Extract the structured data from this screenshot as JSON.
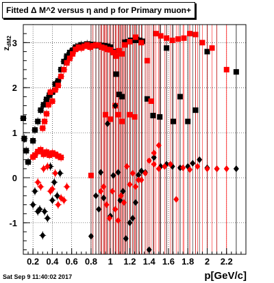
{
  "title": "Fitted Δ M^2 versus η and p for Primary muon+",
  "footer_date": "Sat Sep  9 11:40:02 2017",
  "colors": {
    "black": "#000000",
    "red": "#ff0000"
  },
  "chart_data": {
    "type": "scatter",
    "title": "Fitted Δ M^2 versus η and p for Primary muon+",
    "xlabel": "p[GeV/c]",
    "ylabel": "z",
    "ylabel_sub": "dM2",
    "xlim": [
      0.1,
      2.4
    ],
    "ylim": [
      -1.7,
      3.4
    ],
    "x_ticks": [
      "0.2",
      "0.4",
      "0.6",
      "0.8",
      "1",
      "1.2",
      "1.4",
      "1.6",
      "1.8",
      "2",
      "2.2"
    ],
    "y_ticks": [
      "-1",
      "0",
      "1",
      "2",
      "3"
    ],
    "grid": true,
    "series": [
      {
        "marker": "square",
        "color": "#000000",
        "points": [
          [
            0.1,
            1.32
          ],
          [
            0.11,
            0.87
          ],
          [
            0.13,
            0.6
          ],
          [
            0.15,
            0.35
          ],
          [
            0.2,
            0.82
          ],
          [
            0.22,
            1.06
          ],
          [
            0.25,
            1.25
          ],
          [
            0.28,
            1.5
          ],
          [
            0.31,
            1.62
          ],
          [
            0.34,
            1.74
          ],
          [
            0.37,
            1.83
          ],
          [
            0.4,
            1.9
          ],
          [
            0.43,
            2.08
          ],
          [
            0.46,
            2.15
          ],
          [
            0.49,
            2.4
          ],
          [
            0.52,
            2.58
          ],
          [
            0.55,
            2.7
          ],
          [
            0.58,
            2.78
          ],
          [
            0.61,
            2.83
          ],
          [
            0.64,
            2.9
          ],
          [
            0.67,
            2.92
          ],
          [
            0.7,
            2.95
          ],
          [
            0.73,
            2.94
          ],
          [
            0.76,
            2.97
          ],
          [
            0.79,
            2.95
          ],
          [
            0.82,
            2.96
          ],
          [
            0.85,
            2.93
          ],
          [
            0.88,
            2.95
          ],
          [
            0.91,
            2.94
          ],
          [
            0.94,
            2.93
          ],
          [
            0.97,
            2.92
          ],
          [
            1.0,
            2.9
          ],
          [
            1.03,
            2.8
          ],
          [
            1.06,
            2.3
          ],
          [
            1.09,
            1.85
          ],
          [
            1.12,
            1.8
          ],
          [
            1.15,
            3.01
          ],
          [
            1.18,
            3.02
          ],
          [
            1.21,
            3.05
          ],
          [
            1.24,
            3.05
          ],
          [
            1.27,
            3.07
          ],
          [
            1.3,
            3.05
          ],
          [
            1.33,
            3.03
          ],
          [
            1.38,
            1.75
          ],
          [
            1.44,
            1.38
          ],
          [
            1.51,
            1.35
          ],
          [
            1.58,
            2.88
          ],
          [
            1.65,
            1.25
          ],
          [
            1.72,
            1.8
          ],
          [
            1.8,
            1.25
          ],
          [
            1.88,
            1.5
          ],
          [
            2.0,
            2.8
          ],
          [
            2.3,
            2.35
          ]
        ]
      },
      {
        "marker": "square",
        "color": "#ff0000",
        "points": [
          [
            0.2,
            0.46
          ],
          [
            0.22,
            0.5
          ],
          [
            0.25,
            0.58
          ],
          [
            0.28,
            0.62
          ],
          [
            0.31,
            0.52
          ],
          [
            0.34,
            0.57
          ],
          [
            0.37,
            0.5
          ],
          [
            0.4,
            0.55
          ],
          [
            0.43,
            0.52
          ],
          [
            0.46,
            0.48
          ],
          [
            0.49,
            0.45
          ],
          [
            0.3,
            1.1
          ],
          [
            0.32,
            1.25
          ],
          [
            0.34,
            1.42
          ],
          [
            0.36,
            1.62
          ],
          [
            0.38,
            1.9
          ],
          [
            0.4,
            1.7
          ],
          [
            0.43,
            1.95
          ],
          [
            0.46,
            2.05
          ],
          [
            0.49,
            2.25
          ],
          [
            0.52,
            2.4
          ],
          [
            0.55,
            2.55
          ],
          [
            0.58,
            2.65
          ],
          [
            0.61,
            2.75
          ],
          [
            0.64,
            2.85
          ],
          [
            0.67,
            2.9
          ],
          [
            0.7,
            2.88
          ],
          [
            0.73,
            2.92
          ],
          [
            0.76,
            2.95
          ],
          [
            0.79,
            2.9
          ],
          [
            0.82,
            2.93
          ],
          [
            0.85,
            2.95
          ],
          [
            0.88,
            2.94
          ],
          [
            0.91,
            2.9
          ],
          [
            0.94,
            2.88
          ],
          [
            0.97,
            2.85
          ],
          [
            1.0,
            2.84
          ],
          [
            1.03,
            2.78
          ],
          [
            1.06,
            2.7
          ],
          [
            1.09,
            2.82
          ],
          [
            1.12,
            2.75
          ],
          [
            1.15,
            2.95
          ],
          [
            1.2,
            3.02
          ],
          [
            1.26,
            3.12
          ],
          [
            1.32,
            3.0
          ],
          [
            1.38,
            2.6
          ],
          [
            1.42,
            1.7
          ],
          [
            1.47,
            3.2
          ],
          [
            1.52,
            3.15
          ],
          [
            1.58,
            3.1
          ],
          [
            1.64,
            3.05
          ],
          [
            1.7,
            3.08
          ],
          [
            1.76,
            3.1
          ],
          [
            1.82,
            3.2
          ],
          [
            1.88,
            3.18
          ],
          [
            1.95,
            3.0
          ],
          [
            2.05,
            2.88
          ],
          [
            2.2,
            2.4
          ],
          [
            0.8,
            0.05
          ],
          [
            0.95,
            1.4
          ],
          [
            1.0,
            1.3
          ],
          [
            1.05,
            1.6
          ],
          [
            1.08,
            1.4
          ],
          [
            1.12,
            1.25
          ],
          [
            1.2,
            1.4
          ],
          [
            1.25,
            1.35
          ]
        ]
      },
      {
        "marker": "diamond",
        "color": "#000000",
        "points": [
          [
            0.2,
            -0.6
          ],
          [
            0.22,
            -0.3
          ],
          [
            0.25,
            -0.75
          ],
          [
            0.27,
            -0.7
          ],
          [
            0.3,
            -1.28
          ],
          [
            0.32,
            -0.75
          ],
          [
            0.35,
            -0.9
          ],
          [
            0.38,
            0.25
          ],
          [
            0.4,
            -0.5
          ],
          [
            0.42,
            -0.1
          ],
          [
            0.45,
            -0.4
          ],
          [
            0.48,
            0.1
          ],
          [
            0.8,
            -1.3
          ],
          [
            0.85,
            -0.4
          ],
          [
            0.88,
            -0.7
          ],
          [
            0.9,
            0.12
          ],
          [
            0.93,
            -0.45
          ],
          [
            0.97,
            1.2
          ],
          [
            1.0,
            -0.85
          ],
          [
            1.03,
            0.05
          ],
          [
            1.05,
            1.6
          ],
          [
            1.08,
            0.12
          ],
          [
            1.1,
            -0.5
          ],
          [
            1.13,
            -0.3
          ],
          [
            1.16,
            -1.35
          ],
          [
            1.2,
            -1.0
          ],
          [
            1.23,
            -0.9
          ],
          [
            1.26,
            -0.55
          ],
          [
            1.29,
            0.06
          ],
          [
            1.32,
            0.15
          ],
          [
            1.36,
            0.12
          ],
          [
            1.4,
            -1.6
          ],
          [
            1.45,
            0.45
          ],
          [
            1.52,
            0.25
          ],
          [
            1.58,
            0.3
          ],
          [
            1.64,
            0.25
          ],
          [
            1.72,
            0.22
          ],
          [
            1.8,
            0.25
          ],
          [
            1.85,
            0.32
          ],
          [
            1.92,
            0.4
          ],
          [
            2.0,
            0.22
          ],
          [
            2.1,
            0.2
          ],
          [
            2.3,
            0.2
          ]
        ]
      },
      {
        "marker": "diamond",
        "color": "#ff0000",
        "points": [
          [
            0.25,
            -0.1
          ],
          [
            0.28,
            -0.2
          ],
          [
            0.31,
            0.2
          ],
          [
            0.35,
            0.25
          ],
          [
            0.38,
            -0.3
          ],
          [
            0.4,
            -0.25
          ],
          [
            0.43,
            0.1
          ],
          [
            0.46,
            -0.6
          ],
          [
            0.49,
            -0.45
          ],
          [
            0.52,
            -0.5
          ],
          [
            0.55,
            -0.2
          ],
          [
            0.9,
            -0.3
          ],
          [
            0.93,
            -0.2
          ],
          [
            0.96,
            -0.6
          ],
          [
            0.99,
            -0.9
          ],
          [
            1.02,
            -0.3
          ],
          [
            1.05,
            -0.7
          ],
          [
            1.08,
            -0.95
          ],
          [
            1.11,
            -0.4
          ],
          [
            1.14,
            -0.55
          ],
          [
            1.17,
            0.25
          ],
          [
            1.2,
            -0.15
          ],
          [
            1.23,
            0.1
          ],
          [
            1.26,
            -0.2
          ],
          [
            1.29,
            -0.05
          ],
          [
            1.32,
            -0.05
          ],
          [
            1.36,
            0.1
          ],
          [
            1.4,
            0.38
          ],
          [
            1.45,
            0.55
          ],
          [
            1.5,
            0.2
          ],
          [
            1.56,
            0.25
          ],
          [
            1.62,
            0.3
          ],
          [
            1.68,
            -0.48
          ],
          [
            1.75,
            0.22
          ],
          [
            1.82,
            0.18
          ],
          [
            1.9,
            0.25
          ],
          [
            2.0,
            0.2
          ],
          [
            2.1,
            0.2
          ],
          [
            1.5,
            0.72
          ],
          [
            1.45,
            0.3
          ],
          [
            2.2,
            0.2
          ]
        ]
      }
    ]
  }
}
